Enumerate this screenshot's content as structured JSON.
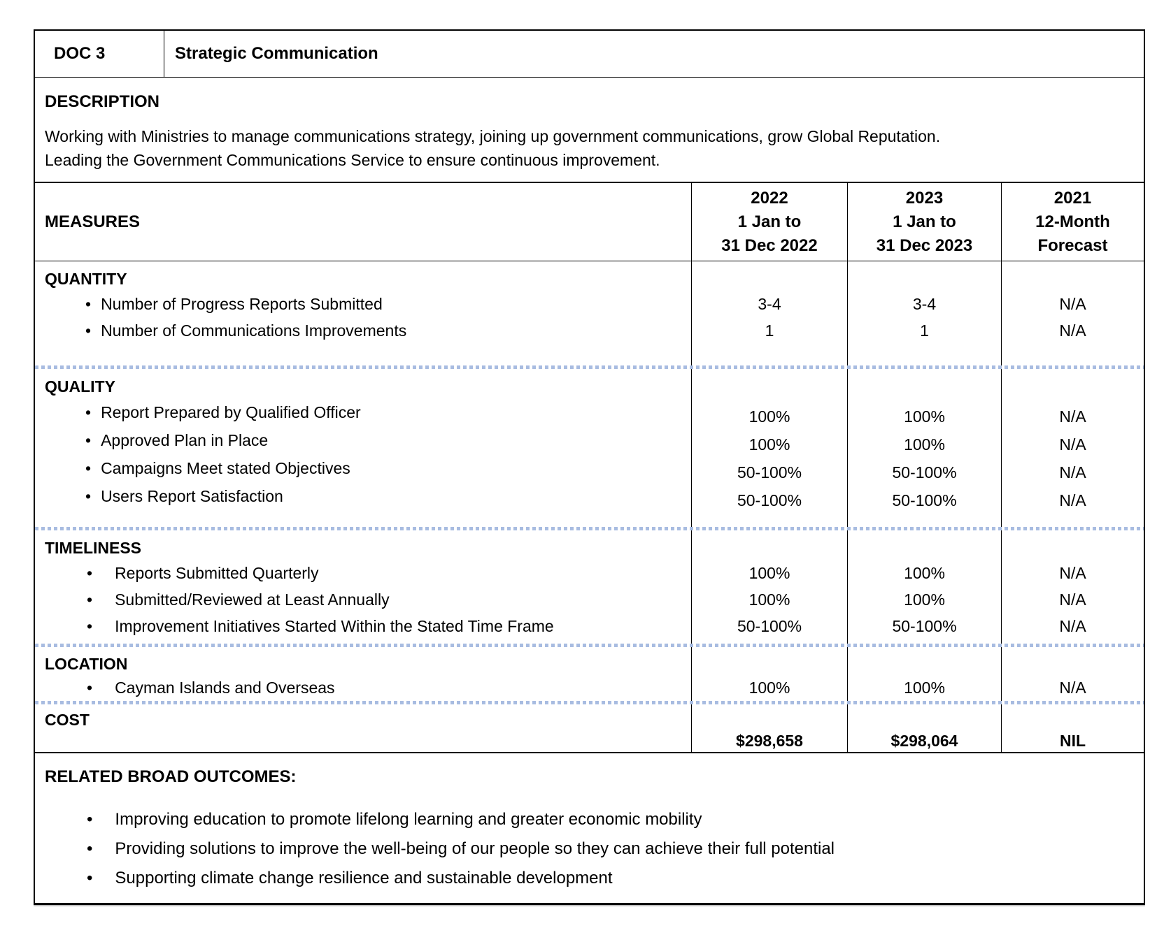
{
  "doc": {
    "id": "DOC 3",
    "title": "Strategic Communication"
  },
  "description": {
    "heading": "DESCRIPTION",
    "lines": [
      "Working with Ministries to manage communications strategy, joining up government communications, grow Global Reputation.",
      "Leading the Government Communications Service to ensure continuous improvement."
    ]
  },
  "measures": {
    "label": "MEASURES",
    "columns": [
      {
        "lines": [
          "2022",
          "1 Jan to",
          "31 Dec 2022"
        ]
      },
      {
        "lines": [
          "2023",
          "1 Jan to",
          "31 Dec 2023"
        ]
      },
      {
        "lines": [
          "2021",
          "12-Month",
          "Forecast"
        ]
      }
    ],
    "sections": [
      {
        "heading": "QUANTITY",
        "items": [
          {
            "label": "Number of Progress Reports Submitted",
            "values": [
              "3-4",
              "3-4",
              "N/A"
            ]
          },
          {
            "label": "Number of Communications Improvements",
            "values": [
              "1",
              "1",
              "N/A"
            ]
          }
        ]
      },
      {
        "heading": "QUALITY",
        "items": [
          {
            "label": "Report Prepared by Qualified Officer",
            "values": [
              "100%",
              "100%",
              "N/A"
            ]
          },
          {
            "label": "Approved Plan in Place",
            "values": [
              "100%",
              "100%",
              "N/A"
            ]
          },
          {
            "label": "Campaigns Meet stated Objectives",
            "values": [
              "50-100%",
              "50-100%",
              "N/A"
            ]
          },
          {
            "label": "Users Report Satisfaction",
            "values": [
              "50-100%",
              "50-100%",
              "N/A"
            ]
          }
        ]
      },
      {
        "heading": "TIMELINESS",
        "items": [
          {
            "label": "Reports Submitted Quarterly",
            "values": [
              "100%",
              "100%",
              "N/A"
            ]
          },
          {
            "label": "Submitted/Reviewed at Least Annually",
            "values": [
              "100%",
              "100%",
              "N/A"
            ]
          },
          {
            "label": "Improvement Initiatives Started Within the Stated Time Frame",
            "values": [
              "50-100%",
              "50-100%",
              "N/A"
            ]
          }
        ]
      },
      {
        "heading": "LOCATION",
        "items": [
          {
            "label": "Cayman Islands and Overseas",
            "values": [
              "100%",
              "100%",
              "N/A"
            ]
          }
        ]
      }
    ],
    "cost": {
      "heading": "COST",
      "values": [
        "$298,658",
        "$298,064",
        "NIL"
      ]
    }
  },
  "outcomes": {
    "heading": "RELATED BROAD OUTCOMES:",
    "items": [
      "Improving education to promote lifelong learning and greater economic mobility",
      "Providing solutions to improve the well-being of our people so they can achieve their full potential",
      "Supporting climate change resilience and sustainable development"
    ]
  },
  "colors": {
    "separator_dotted": "#a8bce1",
    "border": "#000000",
    "background": "#ffffff"
  }
}
